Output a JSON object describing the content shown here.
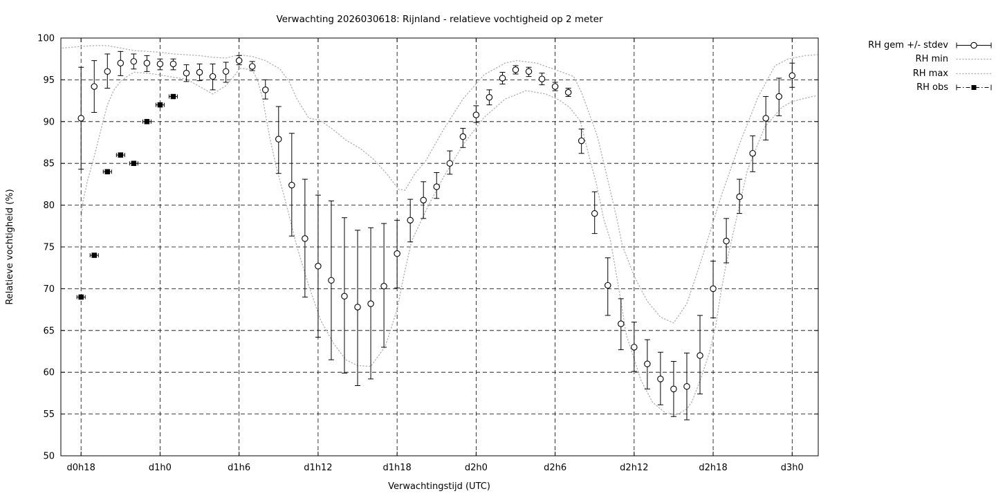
{
  "title": "Verwachting 2026030618: Rijnland - relatieve vochtigheid op 2 meter",
  "legend": {
    "items": [
      {
        "label": "RH gem +/- stdev",
        "glyph": "errorbar-circle"
      },
      {
        "label": "RH min",
        "glyph": "dotted-line"
      },
      {
        "label": "RH max",
        "glyph": "dotted-line"
      },
      {
        "label": "RH obs",
        "glyph": "square-dashdot"
      }
    ]
  },
  "colors": {
    "foreground": "#000000",
    "envelope_gray": "#b9b9b9",
    "background": "#ffffff"
  },
  "chart_data": {
    "type": "line",
    "title": "Verwachting 2026030618: Rijnland - relatieve vochtigheid op 2 meter",
    "xlabel": "Verwachtingstijd (UTC)",
    "ylabel": "Relatieve vochtigheid (%)",
    "ylim": [
      50,
      100
    ],
    "ytick_step": 5,
    "grid": true,
    "legend_position": "outside-top-right",
    "xtick_labels": [
      "d0h18",
      "d1h0",
      "d1h6",
      "d1h12",
      "d1h18",
      "d2h0",
      "d2h6",
      "d2h12",
      "d2h18",
      "d3h0"
    ],
    "xtick_hours": [
      0,
      6,
      12,
      18,
      24,
      30,
      36,
      42,
      48,
      54
    ],
    "xlim_hours": [
      -1.53,
      55.98
    ],
    "series": [
      {
        "name": "RH gem +/- stdev",
        "type": "errorbar-circle",
        "color": "#000000",
        "hour_start": 0,
        "hour_step": 1,
        "mean": [
          90.4,
          94.2,
          96.0,
          97.0,
          97.2,
          97.0,
          96.9,
          96.9,
          95.8,
          95.9,
          95.4,
          96.0,
          97.3,
          96.6,
          93.8,
          87.9,
          82.4,
          76.0,
          72.7,
          71.0,
          69.1,
          67.8,
          68.2,
          70.3,
          74.2,
          78.2,
          80.6,
          82.2,
          85.0,
          88.2,
          90.8,
          92.9,
          95.2,
          96.2,
          96.0,
          95.1,
          94.2,
          93.5,
          87.7,
          79.0,
          70.4,
          65.8,
          63.0,
          61.0,
          59.2,
          58.0,
          58.3,
          62.0,
          70.0,
          75.7,
          81.0,
          86.2,
          90.4,
          93.0,
          95.5
        ],
        "lo": [
          84.3,
          91.1,
          94.0,
          95.5,
          96.3,
          96.0,
          96.2,
          96.2,
          94.8,
          94.9,
          93.8,
          94.7,
          96.8,
          96.1,
          92.7,
          83.8,
          76.3,
          69.0,
          64.2,
          61.5,
          59.9,
          58.4,
          59.2,
          63.0,
          70.1,
          75.6,
          78.4,
          80.8,
          83.7,
          86.9,
          89.9,
          92.0,
          94.5,
          95.7,
          95.4,
          94.4,
          93.7,
          93.0,
          86.2,
          76.6,
          66.8,
          62.7,
          60.1,
          58.0,
          56.1,
          54.7,
          54.3,
          57.4,
          66.5,
          73.1,
          79.0,
          84.0,
          87.8,
          90.7,
          94.1
        ],
        "hi": [
          96.5,
          97.3,
          98.1,
          98.4,
          98.1,
          97.9,
          97.5,
          97.5,
          96.8,
          96.9,
          96.9,
          97.1,
          97.9,
          97.2,
          95.0,
          91.8,
          88.6,
          83.1,
          81.2,
          80.5,
          78.5,
          77.0,
          77.3,
          77.8,
          78.2,
          80.7,
          82.8,
          83.9,
          86.5,
          89.2,
          91.9,
          93.8,
          95.9,
          96.7,
          96.5,
          95.8,
          94.7,
          94.0,
          89.1,
          81.6,
          73.7,
          68.8,
          66.0,
          63.9,
          62.4,
          61.3,
          62.3,
          66.8,
          73.3,
          78.4,
          83.1,
          88.3,
          93.0,
          95.2,
          97.0
        ]
      },
      {
        "name": "RH min",
        "type": "dotted-line",
        "color": "#b9b9b9",
        "points": [
          [
            0,
            78.3
          ],
          [
            0.15,
            80.5
          ],
          [
            0.5,
            83.0
          ],
          [
            1,
            85.8
          ],
          [
            1.5,
            89.0
          ],
          [
            2,
            92.0
          ],
          [
            2.5,
            93.8
          ],
          [
            3,
            94.8
          ],
          [
            3.5,
            95.4
          ],
          [
            4,
            95.9
          ],
          [
            5,
            95.8
          ],
          [
            6,
            95.6
          ],
          [
            7,
            95.3
          ],
          [
            8,
            95.1
          ],
          [
            9,
            94.2
          ],
          [
            10,
            93.3
          ],
          [
            11,
            94.3
          ],
          [
            11.8,
            95.8
          ],
          [
            12,
            96.4
          ],
          [
            13,
            96.2
          ],
          [
            13.4,
            95.0
          ],
          [
            13.8,
            92.7
          ],
          [
            14.3,
            88.3
          ],
          [
            14.8,
            84.7
          ],
          [
            15.6,
            80.0
          ],
          [
            16.4,
            75.0
          ],
          [
            17.3,
            70.3
          ],
          [
            18.2,
            66.2
          ],
          [
            19.2,
            63.4
          ],
          [
            20.1,
            61.5
          ],
          [
            21,
            60.8
          ],
          [
            22,
            60.7
          ],
          [
            23.1,
            63.1
          ],
          [
            24,
            67.5
          ],
          [
            24.5,
            71.5
          ],
          [
            25.1,
            75.7
          ],
          [
            26.3,
            79.7
          ],
          [
            27.5,
            83.3
          ],
          [
            29,
            87.2
          ],
          [
            30.6,
            90.5
          ],
          [
            32.2,
            92.7
          ],
          [
            33.8,
            93.7
          ],
          [
            35.3,
            93.3
          ],
          [
            36.3,
            92.6
          ],
          [
            37.1,
            91.7
          ],
          [
            37.9,
            90.1
          ],
          [
            38.7,
            85.1
          ],
          [
            39.1,
            82.8
          ],
          [
            39.7,
            78.3
          ],
          [
            40.2,
            75.8
          ],
          [
            41,
            68.5
          ],
          [
            41.4,
            64.5
          ],
          [
            42,
            61.6
          ],
          [
            42.5,
            59.1
          ],
          [
            43.4,
            56.4
          ],
          [
            44.4,
            55.1
          ],
          [
            45.2,
            54.9
          ],
          [
            46,
            55.6
          ],
          [
            46.4,
            56.5
          ],
          [
            47.1,
            59.4
          ],
          [
            47.7,
            62.3
          ],
          [
            48.2,
            65.6
          ],
          [
            48.6,
            69.7
          ],
          [
            49,
            73.0
          ],
          [
            49.8,
            78.6
          ],
          [
            50.6,
            84.2
          ],
          [
            51.9,
            89.3
          ],
          [
            53.2,
            91.7
          ],
          [
            54,
            92.4
          ],
          [
            55.5,
            93.0
          ],
          [
            55.9,
            93.1
          ]
        ]
      },
      {
        "name": "RH max",
        "type": "dotted-line",
        "color": "#b9b9b9",
        "points": [
          [
            -1.4,
            98.8
          ],
          [
            0,
            99.0
          ],
          [
            1,
            99.1
          ],
          [
            2,
            99.1
          ],
          [
            3,
            98.8
          ],
          [
            4,
            98.5
          ],
          [
            5,
            98.4
          ],
          [
            6,
            98.3
          ],
          [
            7,
            98.1
          ],
          [
            8,
            98.0
          ],
          [
            9,
            97.9
          ],
          [
            10,
            97.7
          ],
          [
            11,
            97.6
          ],
          [
            12,
            98.0
          ],
          [
            13,
            97.8
          ],
          [
            14,
            97.3
          ],
          [
            15.1,
            96.3
          ],
          [
            15.8,
            94.8
          ],
          [
            16.4,
            92.7
          ],
          [
            17.3,
            90.4
          ],
          [
            18.1,
            90.2
          ],
          [
            19.1,
            89.1
          ],
          [
            20.1,
            87.8
          ],
          [
            21.2,
            86.8
          ],
          [
            22.2,
            85.5
          ],
          [
            23.3,
            83.6
          ],
          [
            24.1,
            81.9
          ],
          [
            24.6,
            81.8
          ],
          [
            25.4,
            83.9
          ],
          [
            26.1,
            85.1
          ],
          [
            27.5,
            89.0
          ],
          [
            29,
            92.7
          ],
          [
            30.6,
            95.6
          ],
          [
            32.2,
            97.0
          ],
          [
            33.1,
            97.3
          ],
          [
            34.6,
            97.0
          ],
          [
            36.2,
            96.1
          ],
          [
            37.4,
            95.4
          ],
          [
            38,
            93.5
          ],
          [
            39.2,
            88.3
          ],
          [
            40,
            83.0
          ],
          [
            40.7,
            78.3
          ],
          [
            41.1,
            75.2
          ],
          [
            42,
            71.5
          ],
          [
            43,
            68.5
          ],
          [
            44,
            66.6
          ],
          [
            45,
            65.9
          ],
          [
            46,
            68.2
          ],
          [
            47.1,
            73.4
          ],
          [
            48,
            78.0
          ],
          [
            48.7,
            81.5
          ],
          [
            50,
            87.3
          ],
          [
            51.4,
            92.9
          ],
          [
            52.7,
            96.7
          ],
          [
            53.7,
            97.5
          ],
          [
            55,
            97.9
          ],
          [
            55.9,
            98.0
          ]
        ]
      },
      {
        "name": "RH obs",
        "type": "square-errorbar",
        "color": "#000000",
        "hours": [
          0,
          1,
          2,
          3,
          4,
          5,
          6,
          7
        ],
        "values": [
          69,
          74,
          84,
          86,
          85,
          90,
          92,
          93
        ]
      }
    ]
  }
}
